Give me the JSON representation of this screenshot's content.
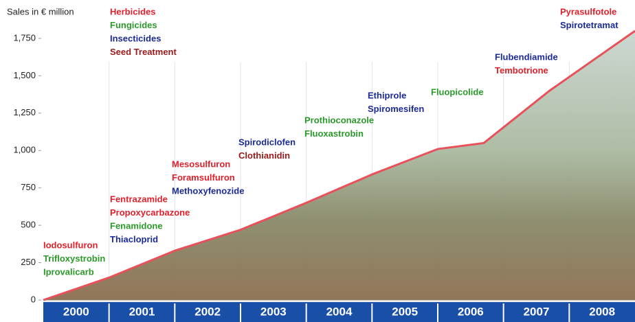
{
  "chart_data": {
    "type": "area",
    "y_axis_label": "Sales in € million",
    "ylim": [
      0,
      1800
    ],
    "yticks": [
      0,
      250,
      500,
      750,
      {
        "value": 1000,
        "label": "1,000"
      },
      {
        "value": 1250,
        "label": "1,250"
      },
      {
        "value": 1500,
        "label": "1,500"
      },
      {
        "value": 1750,
        "label": "1,750"
      }
    ],
    "xlim": [
      2000,
      2009
    ],
    "categories": [
      "2000",
      "2001",
      "2002",
      "2003",
      "2004",
      "2005",
      "2006",
      "2007",
      "2008"
    ],
    "x": [
      2000,
      2001,
      2002,
      2003,
      2004,
      2005,
      2006,
      2006.7,
      2007.7,
      2009
    ],
    "values": [
      0,
      150,
      330,
      470,
      650,
      840,
      1010,
      1050,
      1400,
      1800
    ],
    "color": "#e8505a",
    "legend": [
      {
        "name": "Herbicides",
        "color": "#e0202a"
      },
      {
        "name": "Fungicides",
        "color": "#2a9a2a"
      },
      {
        "name": "Insecticides",
        "color": "#1a2a9a"
      },
      {
        "name": "Seed Treatment",
        "color": "#9a1a1a"
      }
    ],
    "annotations": [
      [
        {
          "text": "Iodosulfuron",
          "color": "#e0202a"
        },
        {
          "text": "Trifloxystrobin",
          "color": "#2a9a2a"
        },
        {
          "text": "Iprovalicarb",
          "color": "#2a9a2a"
        }
      ],
      [
        {
          "text": "Fentrazamide",
          "color": "#e0202a"
        },
        {
          "text": "Propoxycarbazone",
          "color": "#e0202a"
        },
        {
          "text": "Fenamidone",
          "color": "#2a9a2a"
        },
        {
          "text": "Thiacloprid",
          "color": "#1a2a9a"
        }
      ],
      [
        {
          "text": "Mesosulfuron",
          "color": "#e0202a"
        },
        {
          "text": "Foramsulfuron",
          "color": "#e0202a"
        },
        {
          "text": "Methoxyfenozide",
          "color": "#1a2a9a"
        }
      ],
      [
        {
          "text": "Spirodiclofen",
          "color": "#1a2a9a"
        },
        {
          "text": "Clothianidin",
          "color": "#9a1a1a"
        }
      ],
      [
        {
          "text": "Prothioconazole",
          "color": "#2a9a2a"
        },
        {
          "text": "Fluoxastrobin",
          "color": "#2a9a2a"
        }
      ],
      [
        {
          "text": "Ethiprole",
          "color": "#1a2a9a"
        },
        {
          "text": "Spiromesifen",
          "color": "#1a2a9a"
        }
      ],
      [
        {
          "text": "Fluopicolide",
          "color": "#2a9a2a"
        }
      ],
      [
        {
          "text": "Flubendiamide",
          "color": "#1a2a9a"
        },
        {
          "text": "Tembotrione",
          "color": "#e0202a"
        }
      ],
      [
        {
          "text": "Pyrasulfotole",
          "color": "#e0202a"
        },
        {
          "text": "Spirotetramat",
          "color": "#1a2a9a"
        }
      ]
    ]
  }
}
